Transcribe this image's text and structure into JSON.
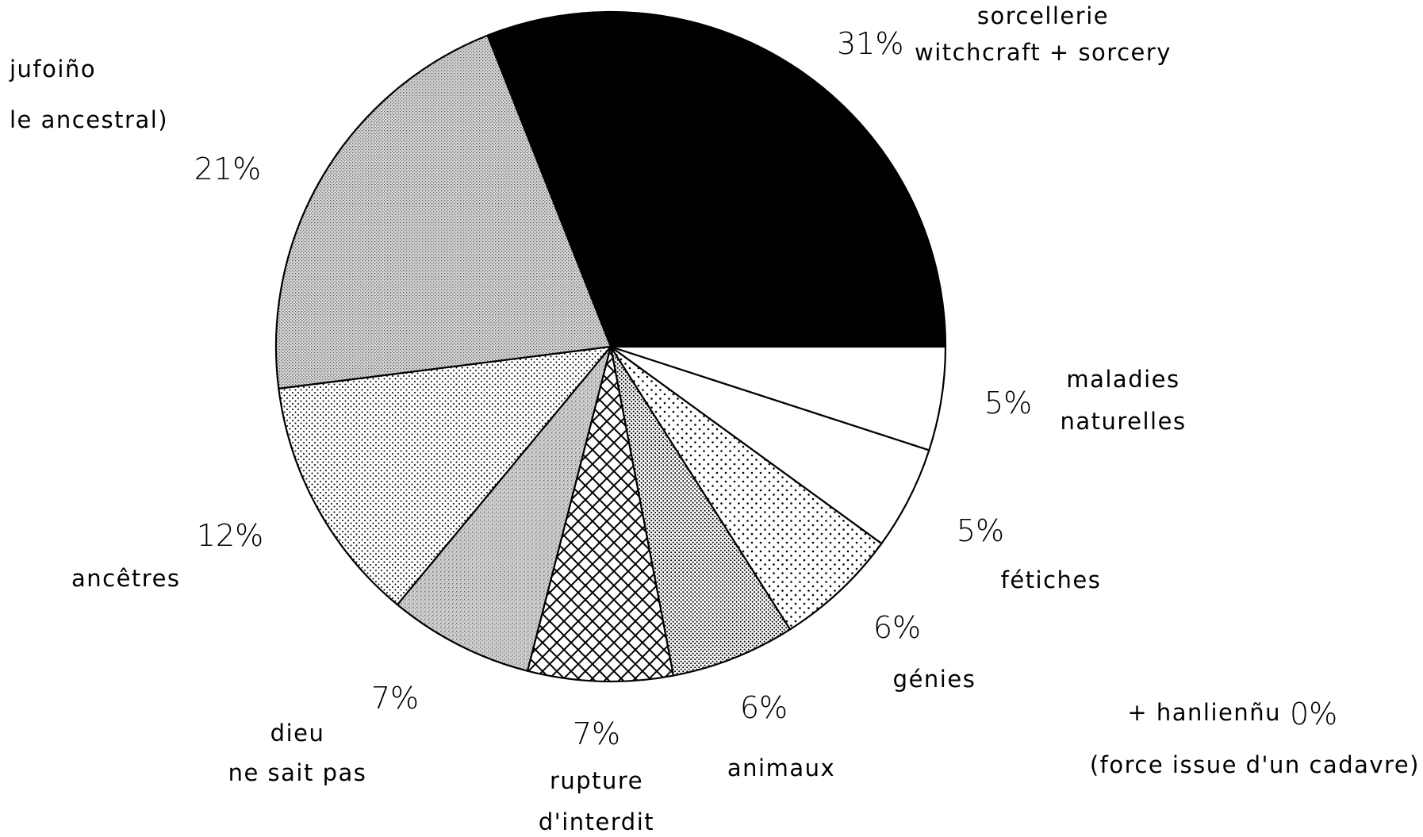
{
  "chart_data": {
    "type": "pie",
    "start_angle_deg": 0,
    "direction": "counterclockwise",
    "slices": [
      {
        "pct_label": "31%",
        "value": 31,
        "lines": [
          "sorcellerie",
          "witchcraft + sorcery"
        ],
        "fill": "black"
      },
      {
        "pct_label": "21%",
        "value": 21,
        "lines": [
          "jufoiño",
          "le ancestral)"
        ],
        "fill": "medium-stipple"
      },
      {
        "pct_label": "12%",
        "value": 12,
        "lines": [
          "ancêtres"
        ],
        "fill": "fine-dots"
      },
      {
        "pct_label": "7%",
        "value": 7,
        "lines": [
          "dieu",
          "ne sait pas"
        ],
        "fill": "fuzzy-stipple"
      },
      {
        "pct_label": "7%",
        "value": 7,
        "lines": [
          "rupture",
          "d'interdit"
        ],
        "fill": "crosshatch"
      },
      {
        "pct_label": "6%",
        "value": 6,
        "lines": [
          "animaux"
        ],
        "fill": "dense-dots"
      },
      {
        "pct_label": "6%",
        "value": 6,
        "lines": [
          "génies"
        ],
        "fill": "sparse-dots"
      },
      {
        "pct_label": "5%",
        "value": 5,
        "lines": [
          "fétiches"
        ],
        "fill": "white"
      },
      {
        "pct_label": "5%",
        "value": 5,
        "lines": [
          "maladies",
          "naturelles"
        ],
        "fill": "white"
      }
    ],
    "extra_note": {
      "text": "+ hanlienñu",
      "pct_label": "0%",
      "sub": "(force issue d'un cadavre)"
    }
  }
}
